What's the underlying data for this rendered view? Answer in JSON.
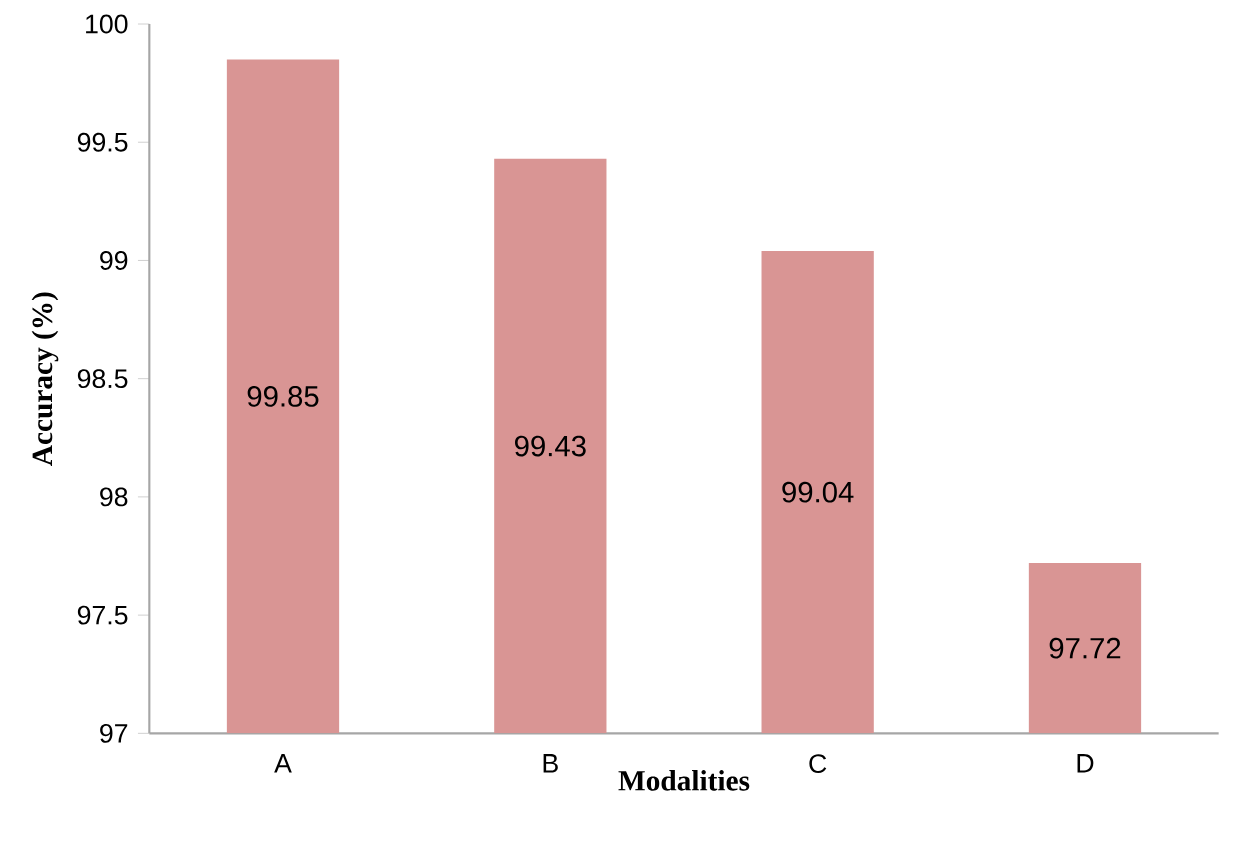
{
  "chart_data": {
    "type": "bar",
    "xlabel": "Modalities",
    "ylabel": "Accuracy (%)",
    "categories": [
      "A",
      "B",
      "C",
      "D"
    ],
    "values": [
      99.85,
      99.43,
      99.04,
      97.72
    ],
    "color": "#d99594",
    "ylim": [
      97,
      100
    ],
    "yticks": [
      97,
      97.5,
      98,
      98.5,
      99,
      99.5,
      100
    ],
    "data_labels": true,
    "grid": false
  }
}
